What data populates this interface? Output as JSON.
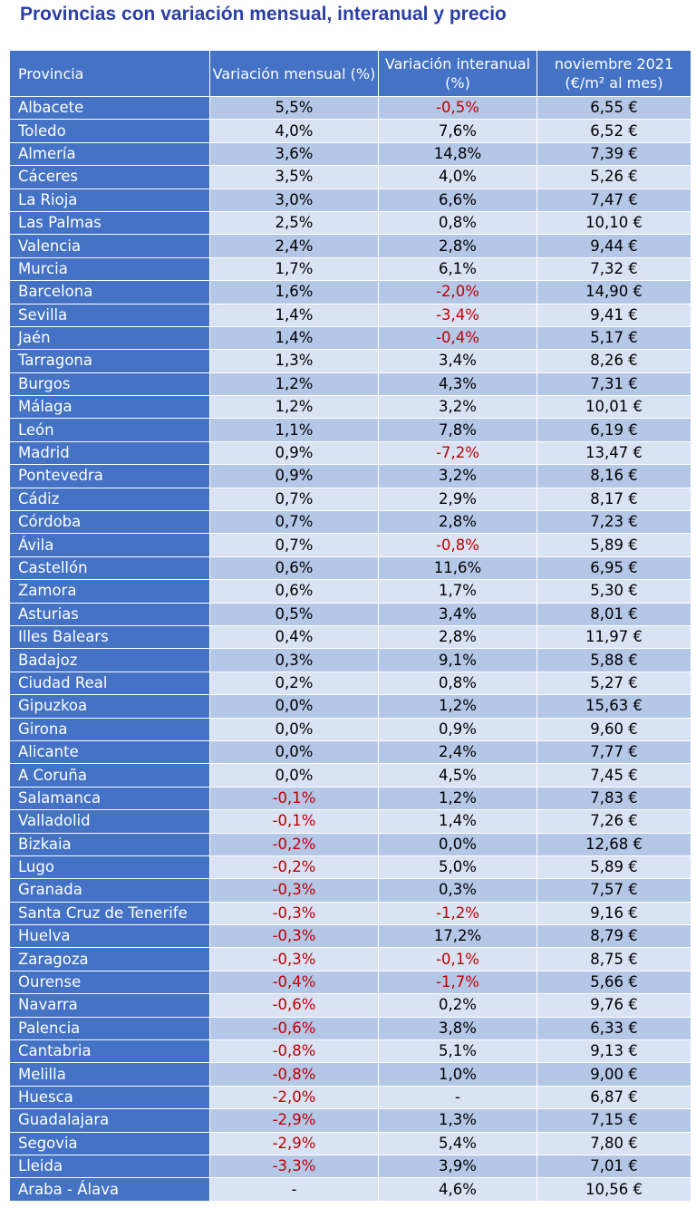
{
  "title": "Provincias con variación mensual, interanual y precio",
  "headers": [
    "Provincia",
    "Variación mensual (%)",
    "Variación interanual (%)",
    "noviembre 2021 (€/m² al mes)"
  ],
  "rows": [
    [
      "Albacete",
      "5,5%",
      "-0,5%",
      "6,55 €"
    ],
    [
      "Toledo",
      "4,0%",
      "7,6%",
      "6,52 €"
    ],
    [
      "Almería",
      "3,6%",
      "14,8%",
      "7,39 €"
    ],
    [
      "Cáceres",
      "3,5%",
      "4,0%",
      "5,26 €"
    ],
    [
      "La Rioja",
      "3,0%",
      "6,6%",
      "7,47 €"
    ],
    [
      "Las Palmas",
      "2,5%",
      "0,8%",
      "10,10 €"
    ],
    [
      "Valencia",
      "2,4%",
      "2,8%",
      "9,44 €"
    ],
    [
      "Murcia",
      "1,7%",
      "6,1%",
      "7,32 €"
    ],
    [
      "Barcelona",
      "1,6%",
      "-2,0%",
      "14,90 €"
    ],
    [
      "Sevilla",
      "1,4%",
      "-3,4%",
      "9,41 €"
    ],
    [
      "Jaén",
      "1,4%",
      "-0,4%",
      "5,17 €"
    ],
    [
      "Tarragona",
      "1,3%",
      "3,4%",
      "8,26 €"
    ],
    [
      "Burgos",
      "1,2%",
      "4,3%",
      "7,31 €"
    ],
    [
      "Málaga",
      "1,2%",
      "3,2%",
      "10,01 €"
    ],
    [
      "León",
      "1,1%",
      "7,8%",
      "6,19 €"
    ],
    [
      "Madrid",
      "0,9%",
      "-7,2%",
      "13,47 €"
    ],
    [
      "Pontevedra",
      "0,9%",
      "3,2%",
      "8,16 €"
    ],
    [
      "Cádiz",
      "0,7%",
      "2,9%",
      "8,17 €"
    ],
    [
      "Córdoba",
      "0,7%",
      "2,8%",
      "7,23 €"
    ],
    [
      "Ávila",
      "0,7%",
      "-0,8%",
      "5,89 €"
    ],
    [
      "Castellón",
      "0,6%",
      "11,6%",
      "6,95 €"
    ],
    [
      "Zamora",
      "0,6%",
      "1,7%",
      "5,30 €"
    ],
    [
      "Asturias",
      "0,5%",
      "3,4%",
      "8,01 €"
    ],
    [
      "Illes Balears",
      "0,4%",
      "2,8%",
      "11,97 €"
    ],
    [
      "Badajoz",
      "0,3%",
      "9,1%",
      "5,88 €"
    ],
    [
      "Ciudad Real",
      "0,2%",
      "0,8%",
      "5,27 €"
    ],
    [
      "Gipuzkoa",
      "0,0%",
      "1,2%",
      "15,63 €"
    ],
    [
      "Girona",
      "0,0%",
      "0,9%",
      "9,60 €"
    ],
    [
      "Alicante",
      "0,0%",
      "2,4%",
      "7,77 €"
    ],
    [
      "A Coruña",
      "0,0%",
      "4,5%",
      "7,45 €"
    ],
    [
      "Salamanca",
      "-0,1%",
      "1,2%",
      "7,83 €"
    ],
    [
      "Valladolid",
      "-0,1%",
      "1,4%",
      "7,26 €"
    ],
    [
      "Bizkaia",
      "-0,2%",
      "0,0%",
      "12,68 €"
    ],
    [
      "Lugo",
      "-0,2%",
      "5,0%",
      "5,89 €"
    ],
    [
      "Granada",
      "-0,3%",
      "0,3%",
      "7,57 €"
    ],
    [
      "Santa Cruz de Tenerife",
      "-0,3%",
      "-1,2%",
      "9,16 €"
    ],
    [
      "Huelva",
      "-0,3%",
      "17,2%",
      "8,79 €"
    ],
    [
      "Zaragoza",
      "-0,3%",
      "-0,1%",
      "8,75 €"
    ],
    [
      "Ourense",
      "-0,4%",
      "-1,7%",
      "5,66 €"
    ],
    [
      "Navarra",
      "-0,6%",
      "0,2%",
      "9,76 €"
    ],
    [
      "Palencia",
      "-0,6%",
      "3,8%",
      "6,33 €"
    ],
    [
      "Cantabria",
      "-0,8%",
      "5,1%",
      "9,13 €"
    ],
    [
      "Melilla",
      "-0,8%",
      "1,0%",
      "9,00 €"
    ],
    [
      "Huesca",
      "-2,0%",
      "-",
      "6,87 €"
    ],
    [
      "Guadalajara",
      "-2,9%",
      "1,3%",
      "7,15 €"
    ],
    [
      "Segovia",
      "-2,9%",
      "5,4%",
      "7,80 €"
    ],
    [
      "Lleida",
      "-3,3%",
      "3,9%",
      "7,01 €"
    ],
    [
      "Araba - Álava",
      "-",
      "4,6%",
      "10,56 €"
    ]
  ],
  "colors": {
    "header_bg": "#4472c4",
    "row_dark": "#b4c7e7",
    "row_light": "#dae3f3",
    "negative": "#c00000",
    "title": "#2b3fa6"
  }
}
